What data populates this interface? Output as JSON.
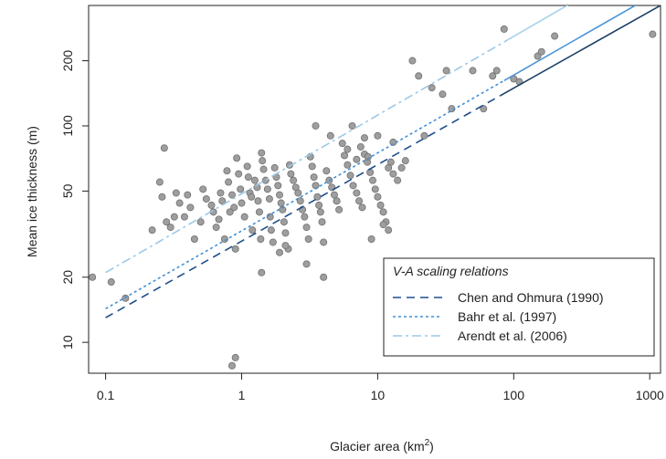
{
  "chart_data": {
    "type": "scatter",
    "xlabel": "Glacier area (km",
    "xlabel_sup": "2",
    "xlabel_end": ")",
    "ylabel": "Mean ice thickness (m)",
    "x_scale": "log",
    "y_scale": "log",
    "xlim": [
      0.075,
      1200
    ],
    "ylim": [
      7.2,
      360
    ],
    "x_ticks": [
      0.1,
      1,
      10,
      100,
      1000
    ],
    "x_tick_labels": [
      "0.1",
      "1",
      "10",
      "100",
      "1000"
    ],
    "y_ticks": [
      10,
      20,
      50,
      100,
      200
    ],
    "y_tick_labels": [
      "10",
      "20",
      "50",
      "100",
      "200"
    ],
    "grid": false,
    "point_color": "#9e9e9e",
    "point_stroke": "#707070",
    "points": [
      [
        0.08,
        20
      ],
      [
        0.11,
        19
      ],
      [
        0.14,
        16
      ],
      [
        0.22,
        33
      ],
      [
        0.25,
        55
      ],
      [
        0.26,
        47
      ],
      [
        0.27,
        79
      ],
      [
        0.28,
        36
      ],
      [
        0.3,
        34
      ],
      [
        0.32,
        38
      ],
      [
        0.33,
        49
      ],
      [
        0.35,
        44
      ],
      [
        0.38,
        38
      ],
      [
        0.4,
        48
      ],
      [
        0.42,
        42
      ],
      [
        0.45,
        30
      ],
      [
        0.5,
        36
      ],
      [
        0.52,
        51
      ],
      [
        0.55,
        46
      ],
      [
        0.6,
        43
      ],
      [
        0.62,
        40
      ],
      [
        0.65,
        34
      ],
      [
        0.68,
        37
      ],
      [
        0.7,
        49
      ],
      [
        0.72,
        45
      ],
      [
        0.75,
        30
      ],
      [
        0.78,
        62
      ],
      [
        0.8,
        55
      ],
      [
        0.82,
        40
      ],
      [
        0.85,
        48
      ],
      [
        0.88,
        42
      ],
      [
        0.9,
        27
      ],
      [
        0.92,
        71
      ],
      [
        0.95,
        60
      ],
      [
        0.98,
        51
      ],
      [
        1.0,
        44
      ],
      [
        1.05,
        38
      ],
      [
        1.1,
        65
      ],
      [
        1.12,
        58
      ],
      [
        1.15,
        49
      ],
      [
        1.18,
        47
      ],
      [
        1.2,
        33
      ],
      [
        1.25,
        56
      ],
      [
        1.3,
        52
      ],
      [
        1.32,
        45
      ],
      [
        1.35,
        40
      ],
      [
        1.38,
        30
      ],
      [
        1.4,
        75
      ],
      [
        1.42,
        69
      ],
      [
        1.45,
        63
      ],
      [
        1.5,
        56
      ],
      [
        1.55,
        51
      ],
      [
        1.6,
        46
      ],
      [
        1.62,
        38
      ],
      [
        1.65,
        33
      ],
      [
        1.7,
        29
      ],
      [
        1.75,
        64
      ],
      [
        1.8,
        58
      ],
      [
        1.85,
        53
      ],
      [
        1.9,
        48
      ],
      [
        1.95,
        44
      ],
      [
        2.0,
        41
      ],
      [
        2.05,
        36
      ],
      [
        2.1,
        32
      ],
      [
        2.2,
        27
      ],
      [
        2.25,
        66
      ],
      [
        2.3,
        60
      ],
      [
        2.4,
        56
      ],
      [
        2.5,
        52
      ],
      [
        2.6,
        49
      ],
      [
        2.7,
        45
      ],
      [
        2.8,
        41
      ],
      [
        2.9,
        38
      ],
      [
        3.0,
        34
      ],
      [
        3.1,
        30
      ],
      [
        3.2,
        72
      ],
      [
        3.3,
        65
      ],
      [
        3.4,
        58
      ],
      [
        3.5,
        53
      ],
      [
        3.6,
        47
      ],
      [
        3.7,
        43
      ],
      [
        3.8,
        40
      ],
      [
        3.9,
        36
      ],
      [
        4.0,
        29
      ],
      [
        4.2,
        62
      ],
      [
        4.4,
        56
      ],
      [
        4.6,
        52
      ],
      [
        4.8,
        48
      ],
      [
        5.0,
        45
      ],
      [
        5.2,
        41
      ],
      [
        5.5,
        83
      ],
      [
        5.7,
        73
      ],
      [
        6.0,
        66
      ],
      [
        6.3,
        59
      ],
      [
        6.6,
        53
      ],
      [
        7.0,
        49
      ],
      [
        7.3,
        45
      ],
      [
        7.7,
        42
      ],
      [
        8.0,
        74
      ],
      [
        8.4,
        68
      ],
      [
        8.8,
        61
      ],
      [
        9.2,
        56
      ],
      [
        9.6,
        51
      ],
      [
        10.0,
        47
      ],
      [
        10.5,
        43
      ],
      [
        11.0,
        40
      ],
      [
        11.5,
        36
      ],
      [
        12.0,
        33
      ],
      [
        12.5,
        68
      ],
      [
        13.0,
        60
      ],
      [
        14.0,
        56
      ],
      [
        15.0,
        64
      ],
      [
        16.0,
        69
      ],
      [
        0.85,
        7.8
      ],
      [
        0.9,
        8.5
      ],
      [
        1.4,
        21
      ],
      [
        1.9,
        26
      ],
      [
        2.1,
        28
      ],
      [
        3.0,
        23
      ],
      [
        4.0,
        20
      ],
      [
        5.0,
        45
      ],
      [
        6.0,
        78
      ],
      [
        7.0,
        70
      ],
      [
        8.0,
        88
      ],
      [
        9.0,
        30
      ],
      [
        10.0,
        90
      ],
      [
        11.0,
        35
      ],
      [
        12.0,
        64
      ],
      [
        13.0,
        84
      ],
      [
        18.0,
        200
      ],
      [
        20.0,
        170
      ],
      [
        22.0,
        90
      ],
      [
        25.0,
        150
      ],
      [
        30.0,
        140
      ],
      [
        32.0,
        180
      ],
      [
        35.0,
        120
      ],
      [
        50.0,
        180
      ],
      [
        60.0,
        120
      ],
      [
        70.0,
        170
      ],
      [
        75.0,
        180
      ],
      [
        85.0,
        280
      ],
      [
        100.0,
        165
      ],
      [
        110.0,
        160
      ],
      [
        150.0,
        210
      ],
      [
        160.0,
        220
      ],
      [
        200.0,
        260
      ],
      [
        1050.0,
        265
      ],
      [
        3.5,
        100
      ],
      [
        4.5,
        90
      ],
      [
        6.5,
        100
      ],
      [
        7.5,
        80
      ],
      [
        8.5,
        72
      ]
    ],
    "lines": [
      {
        "name": "Chen and Ohmura (1990)",
        "color": "#1f4e8a",
        "dash": "9,6",
        "solid_color": "#1b3f66",
        "x_start": 0.1,
        "y_start": 13,
        "x_end": 1200,
        "y_end": 360
      },
      {
        "name": "Bahr et al. (1997)",
        "color": "#3f8fd6",
        "dash": "3,3",
        "solid_color": "#4a94d8",
        "x_start": 0.1,
        "y_start": 14.3,
        "x_end": 1200,
        "y_end": 420
      },
      {
        "name": "Arendt et al. (2006)",
        "color": "#9cc9e6",
        "dash": "10,4,3,4",
        "solid_color": "#a8d1ea",
        "x_start": 0.1,
        "y_start": 21,
        "x_end": 1200,
        "y_end": 640
      }
    ],
    "legend": {
      "title": "V-A scaling relations",
      "placement": "bottom-right"
    }
  }
}
